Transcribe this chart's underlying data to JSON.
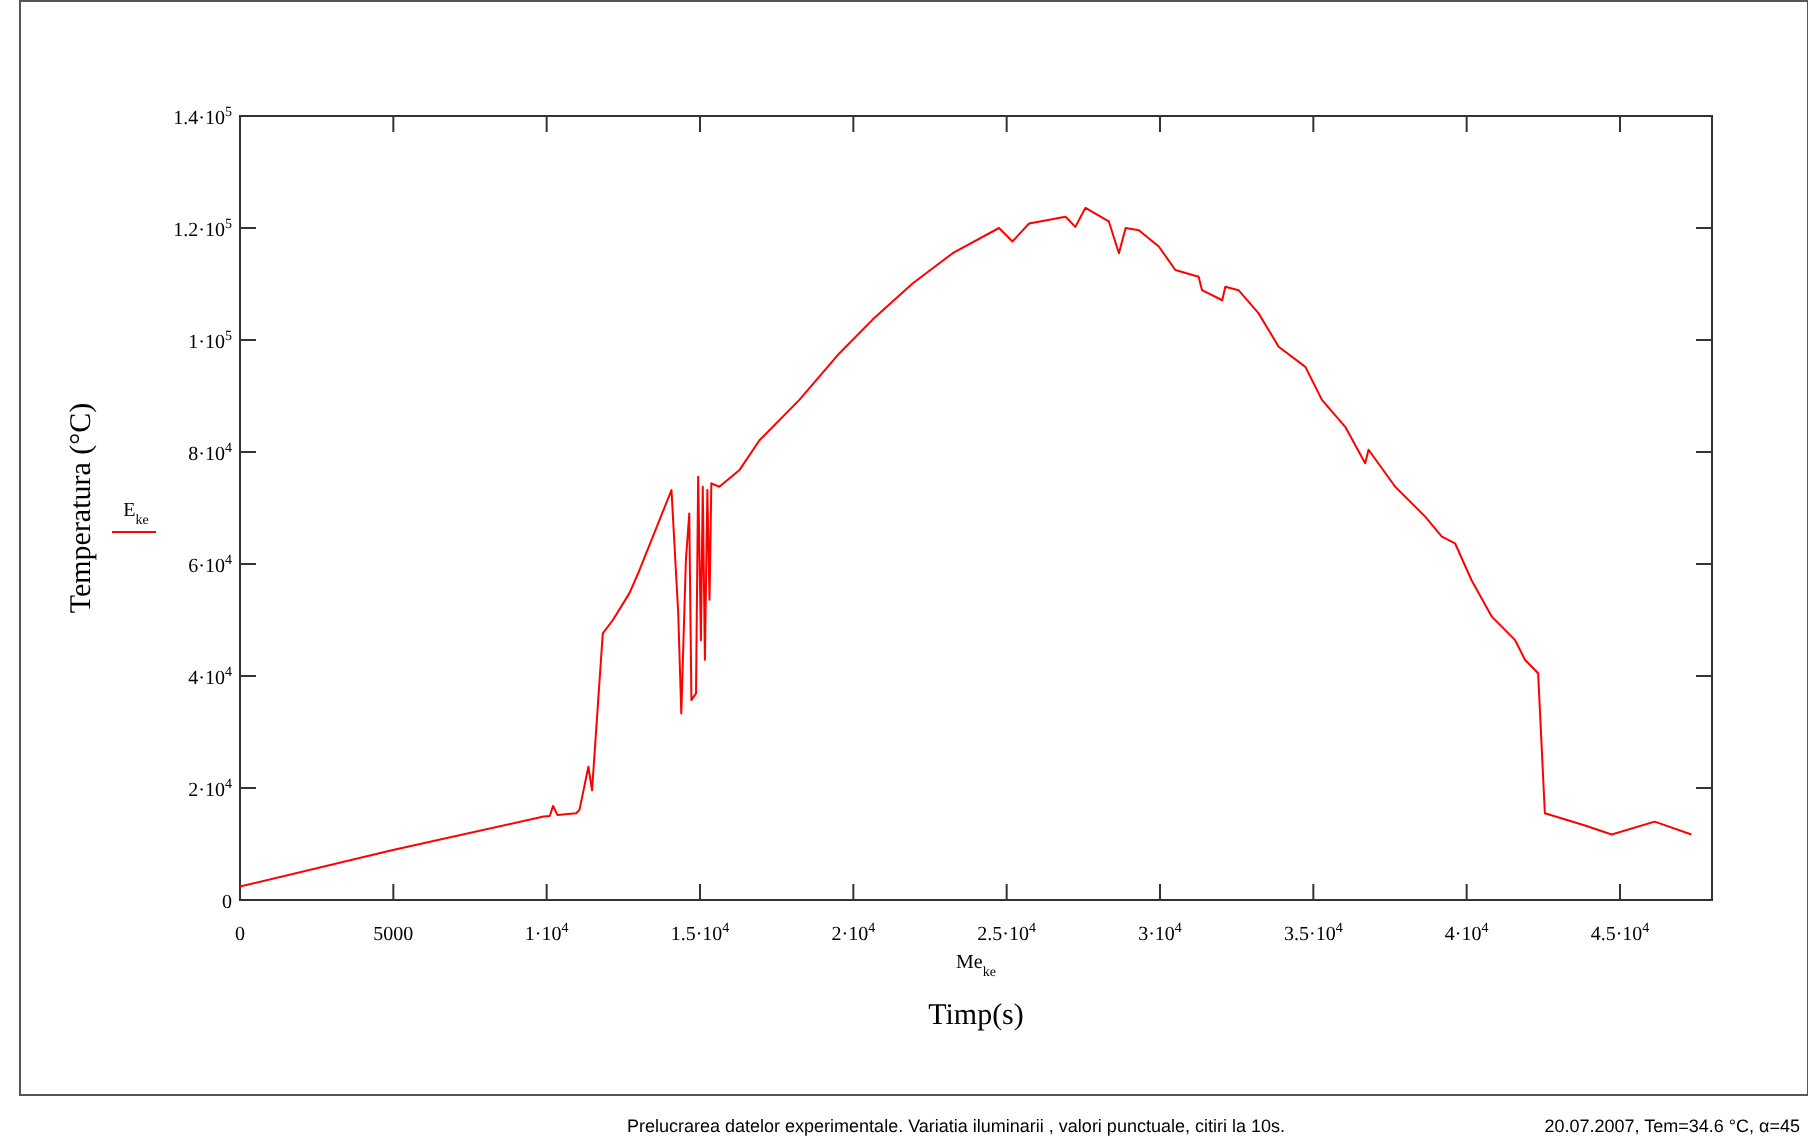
{
  "chart_data": {
    "type": "line",
    "xlabel": "Timp(s)",
    "ylabel": "Temperatura (°C)",
    "annotations": [
      "Me$_{ke}$",
      "Prelucrarea datelor experimentale. Variatia iluminarii , valori punctuale,  citiri la 10s.",
      "20.07.2007, Tem=34.6 °C, α=45"
    ],
    "xlim": [
      0,
      48000
    ],
    "xticks": [
      0,
      5000,
      {
        "value": 10000,
        "label": "1·10$^{4}$"
      },
      {
        "value": 15000,
        "label": "1.5·10$^{4}$"
      },
      {
        "value": 20000,
        "label": "2·10$^{4}$"
      },
      {
        "value": 25000,
        "label": "2.5·10$^{4}$"
      },
      {
        "value": 30000,
        "label": "3·10$^{4}$"
      },
      {
        "value": 35000,
        "label": "3.5·10$^{4}$"
      },
      {
        "value": 40000,
        "label": "4·10$^{4}$"
      },
      {
        "value": 45000,
        "label": "4.5·10$^{4}$"
      }
    ],
    "ylim": [
      0,
      140000
    ],
    "yticks": [
      0,
      {
        "value": 20000,
        "label": "2·10$^{4}$"
      },
      {
        "value": 40000,
        "label": "4·10$^{4}$"
      },
      {
        "value": 60000,
        "label": "6·10$^{4}$"
      },
      {
        "value": 80000,
        "label": "8·10$^{4}$"
      },
      {
        "value": 100000,
        "label": "1·10$^{5}$"
      },
      {
        "value": 120000,
        "label": "1.2·10$^{5}$"
      },
      {
        "value": 140000,
        "label": "1.4·10$^{5}$"
      }
    ],
    "grid": false,
    "legend": "left",
    "marker": "none",
    "line_style": "solid",
    "x": [
      0,
      4950,
      9900,
      10100,
      10210,
      10350,
      10960,
      11070,
      11360,
      11480,
      11830,
      12160,
      12700,
      12980,
      14070,
      14290,
      14390,
      14540,
      14650,
      14720,
      14870,
      14940,
      15030,
      15090,
      15160,
      15240,
      15310,
      15370,
      15630,
      16290,
      16940,
      18240,
      19540,
      20620,
      21930,
      23240,
      24750,
      25190,
      25730,
      26920,
      27240,
      27570,
      28330,
      28660,
      28880,
      29310,
      29960,
      30500,
      31260,
      31370,
      32030,
      32130,
      32560,
      33210,
      33870,
      34740,
      35280,
      36040,
      36690,
      36800,
      37670,
      38640,
      39190,
      39620,
      40160,
      40820,
      41580,
      41900,
      42330,
      42550,
      43860,
      44730,
      46130,
      47330
    ],
    "series": [
      {
        "name": "E$_{ke}$",
        "color": "#ff0000",
        "values": [
          2400,
          8900,
          14900,
          15000,
          16800,
          15200,
          15500,
          16100,
          23800,
          19600,
          47600,
          50000,
          54800,
          58300,
          73200,
          51200,
          33300,
          60700,
          69000,
          35700,
          36900,
          75600,
          46400,
          73800,
          42900,
          73200,
          53600,
          74400,
          73800,
          76800,
          82100,
          89300,
          97600,
          103600,
          110100,
          115500,
          120000,
          117600,
          120800,
          122000,
          120200,
          123600,
          121200,
          115500,
          120000,
          119600,
          116700,
          112500,
          111300,
          108900,
          107100,
          109500,
          108900,
          104800,
          98800,
          95200,
          89300,
          84500,
          78000,
          80400,
          73800,
          68500,
          64900,
          63700,
          57100,
          50600,
          46400,
          42900,
          40500,
          15500,
          13300,
          11700,
          14000,
          11700
        ]
      }
    ]
  }
}
